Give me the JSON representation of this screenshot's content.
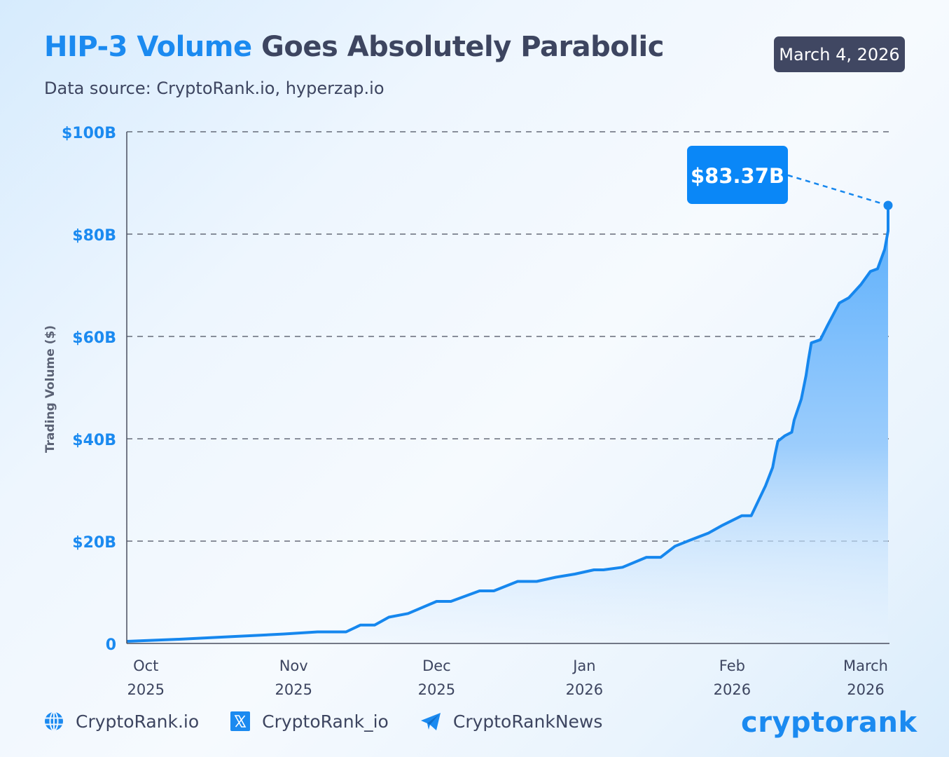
{
  "header": {
    "title_highlight": "HIP-3 Volume",
    "title_rest": "Goes Absolutely Parabolic",
    "subtitle": "Data source: CryptoRank.io, hyperzap.io",
    "date_badge": "March 4, 2026"
  },
  "footer": {
    "items": [
      {
        "icon": "globe-icon",
        "label": "CryptoRank.io"
      },
      {
        "icon": "x-twitter-icon",
        "label": "CryptoRank_io"
      },
      {
        "icon": "telegram-icon",
        "label": "CryptoRankNews"
      }
    ],
    "logo": "cryptorank"
  },
  "colors": {
    "accent": "#1b8af0",
    "text_dark": "#3d4560",
    "badge_bg": "#404762",
    "callout_bg": "#0a87f7"
  },
  "chart_data": {
    "type": "area",
    "title": "HIP-3 Volume Goes Absolutely Parabolic",
    "xlabel": "",
    "ylabel": "Trading Volume ($)",
    "ylim": [
      0,
      100
    ],
    "y_unit": "billion USD",
    "y_ticks": [
      {
        "value": 0,
        "label": "0"
      },
      {
        "value": 20,
        "label": "$20B"
      },
      {
        "value": 40,
        "label": "$40B"
      },
      {
        "value": 60,
        "label": "$60B"
      },
      {
        "value": 80,
        "label": "$80B"
      },
      {
        "value": 100,
        "label": "$100B"
      }
    ],
    "x_domain_days": [
      -4,
      156
    ],
    "x_ticks": [
      {
        "day": 0,
        "month": "Oct",
        "year": "2025"
      },
      {
        "day": 31,
        "month": "Nov",
        "year": "2025"
      },
      {
        "day": 61,
        "month": "Dec",
        "year": "2025"
      },
      {
        "day": 92,
        "month": "Jan",
        "year": "2026"
      },
      {
        "day": 123,
        "month": "Feb",
        "year": "2026"
      },
      {
        "day": 151,
        "month": "March",
        "year": "2026"
      }
    ],
    "x_reference": "days since Oct 1, 2025",
    "grid": "horizontal dashed",
    "series": [
      {
        "name": "Cumulative HIP-3 Volume",
        "points": [
          [
            -4,
            0.4
          ],
          [
            7,
            0.8
          ],
          [
            18,
            1.3
          ],
          [
            29,
            1.8
          ],
          [
            36,
            2.2
          ],
          [
            42,
            2.2
          ],
          [
            45,
            3.5
          ],
          [
            48,
            3.5
          ],
          [
            51,
            5.0
          ],
          [
            55,
            5.7
          ],
          [
            61,
            8.0
          ],
          [
            64,
            8.0
          ],
          [
            70,
            10.0
          ],
          [
            73,
            10.0
          ],
          [
            78,
            11.8
          ],
          [
            82,
            11.8
          ],
          [
            86,
            12.6
          ],
          [
            90,
            13.2
          ],
          [
            94,
            14.0
          ],
          [
            96,
            14.0
          ],
          [
            100,
            14.5
          ],
          [
            105,
            16.4
          ],
          [
            108,
            16.4
          ],
          [
            111,
            18.5
          ],
          [
            114,
            19.6
          ],
          [
            118,
            21.0
          ],
          [
            121,
            22.5
          ],
          [
            125,
            24.3
          ],
          [
            127,
            24.3
          ],
          [
            130,
            30.0
          ],
          [
            131.5,
            33.5
          ],
          [
            132,
            36.0
          ],
          [
            132.6,
            38.5
          ],
          [
            134,
            39.5
          ],
          [
            135.5,
            40.2
          ],
          [
            136,
            42.5
          ],
          [
            137.5,
            46.5
          ],
          [
            138.5,
            51.0
          ],
          [
            139,
            54.0
          ],
          [
            139.6,
            57.2
          ],
          [
            141.5,
            57.8
          ],
          [
            143,
            60.5
          ],
          [
            145.5,
            64.8
          ],
          [
            147.5,
            65.8
          ],
          [
            150,
            68.3
          ],
          [
            152,
            70.8
          ],
          [
            153.5,
            71.3
          ],
          [
            155,
            75.0
          ],
          [
            157,
            78.5
          ],
          [
            158.5,
            80.3
          ],
          [
            159.5,
            80.8
          ],
          [
            160,
            83.0
          ],
          [
            161,
            83.37
          ]
        ]
      }
    ],
    "annotations": [
      {
        "text": "$83.37B",
        "day": 161,
        "value": 83.37,
        "type": "callout-last-point"
      }
    ]
  }
}
